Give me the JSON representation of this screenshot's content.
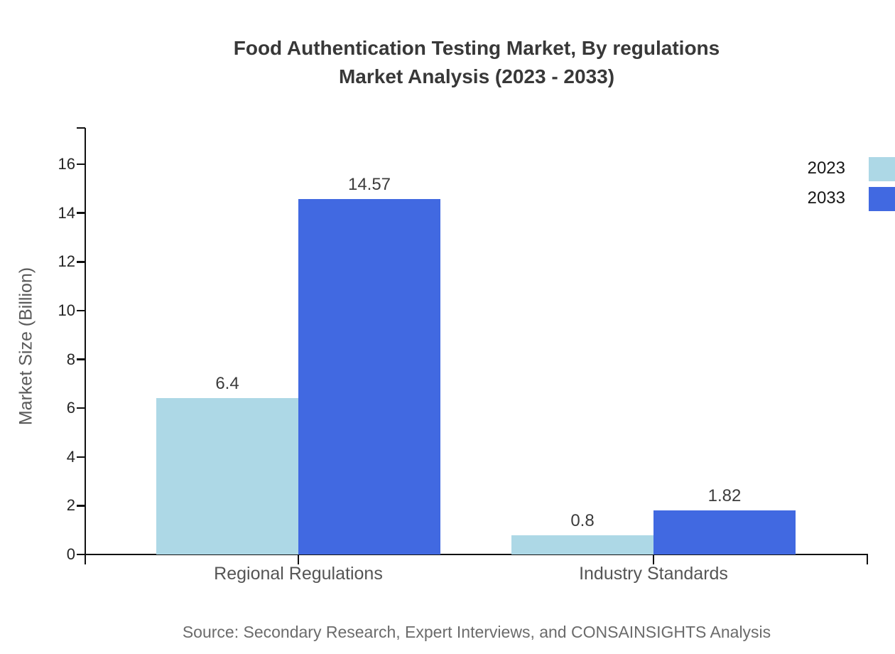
{
  "title": {
    "line1": "Food Authentication Testing Market, By regulations",
    "line2": "Market Analysis (2023 - 2033)"
  },
  "source": "Source: Secondary Research, Expert Interviews, and CONSAINSIGHTS Analysis",
  "chart_data": {
    "type": "bar",
    "title": "Food Authentication Testing Market, By regulations Market Analysis (2023 - 2033)",
    "categories": [
      "Regional Regulations",
      "Industry Standards"
    ],
    "series": [
      {
        "name": "2023",
        "color": "#ADD8E6",
        "values": [
          6.4,
          0.8
        ],
        "labels": [
          "6.4",
          "0.8"
        ]
      },
      {
        "name": "2033",
        "color": "#4169E1",
        "values": [
          14.57,
          1.82
        ],
        "labels": [
          "14.57",
          "1.82"
        ]
      }
    ],
    "xlabel": "",
    "ylabel": "Market Size (Billion)",
    "y_ticks": [
      0,
      2,
      4,
      6,
      8,
      10,
      12,
      14,
      16
    ],
    "ylim": [
      0,
      17.5
    ],
    "grid": false,
    "legend_position": "top-right",
    "axis_color": "#111111"
  }
}
